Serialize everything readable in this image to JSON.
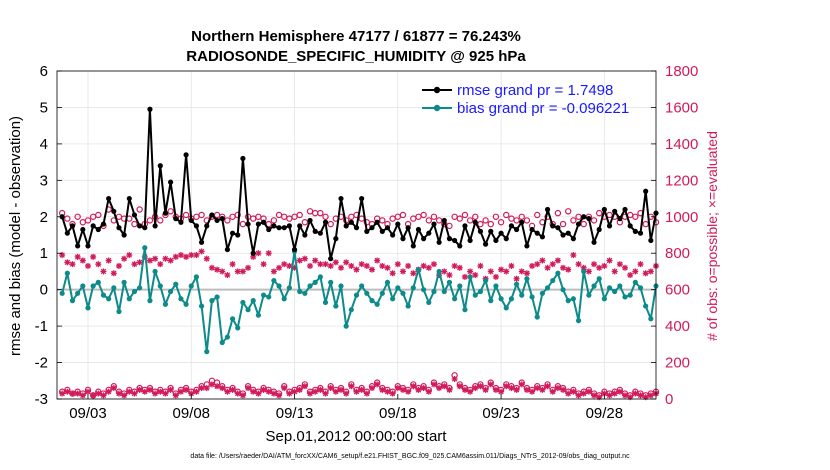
{
  "chart_data": {
    "type": "line",
    "title": "Northern Hemisphere 47177 / 61877 = 76.243%",
    "subtitle": "RADIOSONDE_SPECIFIC_HUMIDITY @ 925 hPa",
    "xlabel": "Sep.01,2012 00:00:00 start",
    "ylabel": "rmse and bias (model - observation)",
    "ylabel_right": "# of obs: o=possible; ×=evaluated",
    "footnote": "data file: /Users/raeder/DAI/ATM_forcXX/CAM6_setup/f.e21.FHIST_BGC.f09_025.CAM6assim.011/Diags_NTrS_2012-09/obs_diag_output.nc",
    "ylim": [
      -3,
      6
    ],
    "ylim_right": [
      0,
      1800
    ],
    "xlim": [
      1.5,
      30.5
    ],
    "yticks": [
      "-3",
      "-2",
      "-1",
      "0",
      "1",
      "2",
      "3",
      "4",
      "5",
      "6"
    ],
    "yticks_right": [
      "0",
      "200",
      "400",
      "600",
      "800",
      "1000",
      "1200",
      "1400",
      "1600",
      "1800"
    ],
    "xticks": [
      {
        "x": 3,
        "label": "09/03"
      },
      {
        "x": 8,
        "label": "09/08"
      },
      {
        "x": 13,
        "label": "09/13"
      },
      {
        "x": 18,
        "label": "09/18"
      },
      {
        "x": 23,
        "label": "09/23"
      },
      {
        "x": 28,
        "label": "09/28"
      }
    ],
    "grid": true,
    "legend_position": "top-right",
    "colors": {
      "rmse": "#000000",
      "bias": "#0d8a8a",
      "obs": "#d11a5b",
      "zero_line": "#bdbdbd",
      "legend_text": "#1a1aff"
    },
    "series": [
      {
        "name": "rmse grand pr = 1.7498",
        "color": "#000000",
        "values": [
          2.0,
          1.55,
          1.75,
          1.2,
          1.65,
          1.2,
          1.75,
          1.65,
          1.8,
          2.5,
          2.15,
          1.7,
          1.5,
          2.5,
          2.05,
          1.75,
          1.7,
          4.95,
          1.75,
          3.4,
          2.1,
          2.95,
          1.95,
          1.85,
          3.7,
          1.9,
          1.75,
          1.3,
          1.75,
          2.05,
          1.9,
          1.95,
          1.1,
          1.55,
          1.5,
          3.6,
          1.8,
          1.0,
          1.8,
          1.85,
          1.65,
          1.75,
          1.7,
          1.7,
          1.75,
          1.1,
          1.75,
          1.5,
          1.9,
          1.6,
          1.55,
          1.85,
          0.85,
          1.4,
          2.5,
          1.75,
          1.85,
          1.7,
          2.5,
          1.6,
          1.7,
          1.85,
          1.6,
          1.7,
          1.5,
          1.8,
          1.4,
          1.7,
          1.2,
          1.65,
          1.4,
          1.55,
          1.8,
          1.3,
          1.9,
          1.4,
          1.35,
          1.2,
          1.75,
          1.35,
          1.85,
          1.6,
          1.25,
          1.6,
          1.35,
          1.55,
          1.4,
          1.75,
          1.65,
          1.85,
          1.2,
          1.65,
          1.55,
          1.45,
          2.2,
          1.75,
          1.7,
          1.5,
          1.55,
          1.4,
          1.8,
          2.0,
          1.95,
          1.3,
          1.65,
          2.2,
          1.75,
          2.15,
          1.95,
          2.2,
          1.75,
          1.6,
          1.55,
          2.7,
          1.35,
          2.1,
          1.4,
          1.65
        ]
      },
      {
        "name": "bias grand pr = -0.096221",
        "color": "#0d8a8a",
        "values": [
          -0.1,
          0.45,
          -0.3,
          -0.1,
          0.1,
          -0.5,
          0.1,
          0.2,
          -0.15,
          -0.25,
          0.05,
          -0.6,
          0.2,
          -0.25,
          -0.05,
          0.05,
          1.15,
          -0.3,
          0.5,
          0.1,
          -0.4,
          -0.05,
          0.15,
          -0.25,
          -0.4,
          0.1,
          0.35,
          -0.45,
          -1.7,
          -0.3,
          -0.2,
          -1.45,
          -1.3,
          -0.8,
          -1.05,
          -0.35,
          -0.55,
          -0.3,
          -0.7,
          -0.15,
          -0.2,
          0.25,
          0.1,
          -0.25,
          0.05,
          1.05,
          -0.05,
          -0.1,
          0.1,
          0.2,
          0.35,
          -0.35,
          0.2,
          -0.45,
          0.1,
          -1.0,
          -0.55,
          -0.15,
          0.1,
          -0.1,
          -0.3,
          -0.4,
          -0.1,
          0.2,
          -0.25,
          0.05,
          -0.1,
          -0.45,
          0.05,
          0.55,
          0.0,
          -0.35,
          -0.05,
          0.5,
          -0.05,
          0.2,
          -0.25,
          0.1,
          -0.55,
          0.35,
          -0.15,
          -0.05,
          0.25,
          -0.3,
          0.1,
          -0.25,
          -0.5,
          -0.25,
          0.15,
          -0.15,
          0.3,
          -0.2,
          -0.75,
          -0.1,
          0.05,
          0.25,
          0.45,
          0.0,
          -0.3,
          -0.25,
          -0.85,
          0.5,
          -0.15,
          0.1,
          0.3,
          -0.25,
          0.05,
          -0.05,
          0.1,
          -0.2,
          -0.15,
          0.2,
          0.05,
          -0.45,
          -0.8,
          0.1,
          -0.6,
          -0.25
        ]
      },
      {
        "name": "possible",
        "marker": "o",
        "color": "#d11a5b",
        "values": [
          1020,
          990,
          960,
          1000,
          970,
          980,
          1000,
          1010,
          950,
          1040,
          980,
          1000,
          990,
          990,
          960,
          1040,
          960,
          980,
          1000,
          980,
          1010,
          1030,
          1000,
          990,
          1010,
          990,
          1000,
          1010,
          980,
          1000,
          1010,
          1000,
          980,
          1000,
          1010,
          960,
          1000,
          990,
          1000,
          990,
          960,
          980,
          1010,
          1000,
          990,
          1000,
          1010,
          970,
          1030,
          1020,
          1020,
          1000,
          960,
          990,
          1000,
          980,
          1000,
          1010,
          990,
          970,
          960,
          990,
          980,
          960,
          990,
          1000,
          1010,
          960,
          990,
          1000,
          1010,
          980,
          1000,
          980,
          960,
          950,
          1000,
          990,
          1010,
          980,
          1000,
          960,
          980,
          960,
          1000,
          970,
          1010,
          990,
          980,
          1000,
          980,
          950,
          1010,
          970,
          1000,
          960,
          1020,
          960,
          1030,
          980,
          1000,
          960,
          1000,
          980,
          1020,
          1000,
          1010,
          1000,
          970,
          1000,
          1010,
          1000,
          1020,
          960,
          1000,
          970,
          1010,
          960
        ]
      },
      {
        "name": "evaluated",
        "marker": "*",
        "color": "#d11a5b",
        "values": [
          790,
          750,
          740,
          780,
          760,
          730,
          780,
          740,
          700,
          760,
          690,
          730,
          770,
          790,
          740,
          750,
          780,
          760,
          770,
          740,
          770,
          760,
          780,
          790,
          780,
          790,
          790,
          810,
          770,
          720,
          710,
          700,
          680,
          740,
          700,
          700,
          720,
          780,
          800,
          740,
          800,
          700,
          720,
          740,
          730,
          720,
          760,
          770,
          730,
          760,
          740,
          740,
          730,
          750,
          720,
          750,
          730,
          710,
          740,
          730,
          710,
          760,
          730,
          720,
          690,
          740,
          700,
          730,
          690,
          710,
          730,
          720,
          740,
          680,
          700,
          680,
          730,
          720,
          670,
          700,
          680,
          730,
          660,
          700,
          670,
          710,
          700,
          730,
          660,
          700,
          690,
          730,
          740,
          760,
          720,
          740,
          760,
          720,
          710,
          790,
          740,
          720,
          700,
          740,
          720,
          730,
          760,
          700,
          740,
          720,
          680,
          700,
          740,
          690,
          700,
          730,
          690,
          720
        ]
      },
      {
        "name": "possible-low",
        "marker": "o",
        "color": "#d11a5b",
        "values": [
          40,
          50,
          30,
          40,
          30,
          50,
          20,
          40,
          30,
          50,
          70,
          40,
          30,
          50,
          40,
          60,
          50,
          60,
          40,
          50,
          40,
          60,
          30,
          50,
          60,
          40,
          50,
          70,
          80,
          100,
          90,
          70,
          50,
          60,
          40,
          30,
          70,
          50,
          40,
          60,
          50,
          40,
          30,
          70,
          40,
          50,
          60,
          80,
          40,
          50,
          60,
          40,
          70,
          50,
          60,
          40,
          80,
          50,
          60,
          40,
          70,
          90,
          60,
          50,
          40,
          70,
          60,
          50,
          80,
          60,
          70,
          50,
          90,
          70,
          80,
          60,
          130,
          80,
          60,
          50,
          70,
          80,
          60,
          90,
          60,
          50,
          80,
          70,
          60,
          90,
          60,
          50,
          70,
          60,
          80,
          50,
          70,
          60,
          40,
          50,
          30,
          40,
          50,
          30,
          20,
          40,
          30,
          40,
          50,
          30,
          20,
          40,
          30,
          20,
          30,
          40,
          10,
          0
        ]
      },
      {
        "name": "evaluated-low",
        "marker": "*",
        "color": "#d11a5b",
        "values": [
          30,
          40,
          30,
          30,
          20,
          40,
          20,
          30,
          20,
          40,
          60,
          30,
          20,
          40,
          30,
          50,
          40,
          50,
          30,
          40,
          30,
          50,
          20,
          40,
          50,
          30,
          40,
          60,
          60,
          80,
          70,
          60,
          40,
          50,
          30,
          20,
          60,
          40,
          30,
          50,
          40,
          30,
          20,
          60,
          30,
          40,
          50,
          70,
          30,
          40,
          50,
          30,
          60,
          40,
          50,
          30,
          70,
          40,
          50,
          30,
          60,
          80,
          50,
          40,
          30,
          60,
          50,
          40,
          70,
          50,
          60,
          40,
          80,
          60,
          70,
          50,
          110,
          70,
          50,
          40,
          60,
          70,
          50,
          80,
          50,
          40,
          70,
          60,
          50,
          80,
          50,
          40,
          60,
          50,
          70,
          40,
          60,
          50,
          30,
          40,
          20,
          30,
          40,
          20,
          10,
          30,
          20,
          30,
          40,
          20,
          10,
          30,
          20,
          10,
          20,
          30,
          5,
          0
        ]
      }
    ]
  }
}
